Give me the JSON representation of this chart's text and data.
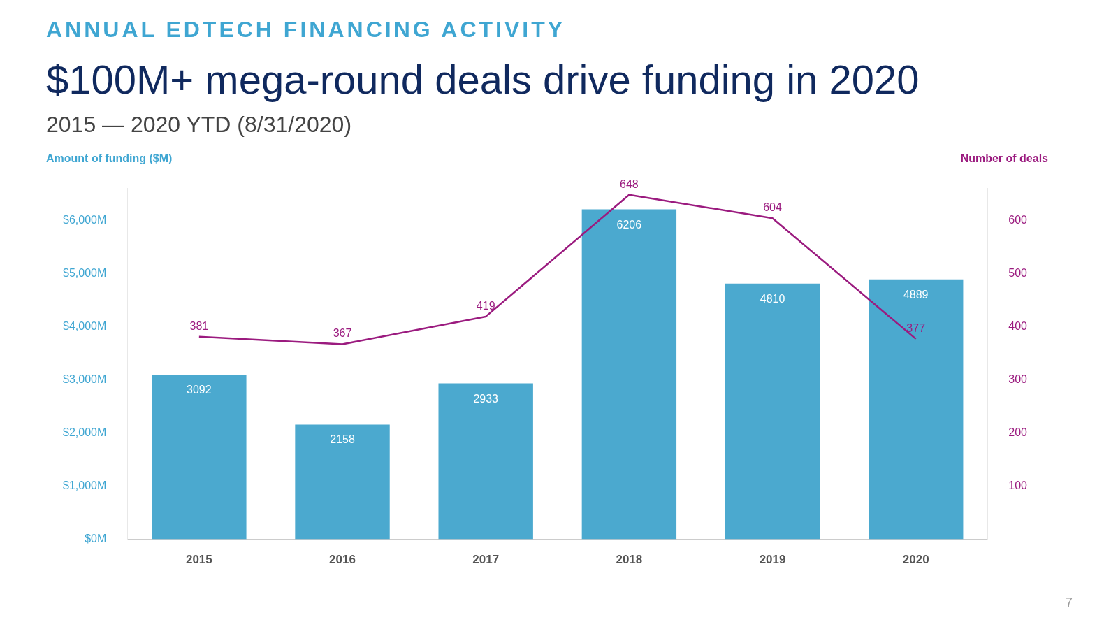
{
  "chart_data": {
    "type": "bar",
    "subtitle": "ANNUAL EDTECH FINANCING ACTIVITY",
    "title": "$100M+ mega-round deals drive funding in 2020",
    "annotations": [
      "2015 — 2020 YTD (8/31/2020)",
      "7"
    ],
    "ylabel": "Amount of funding ($M)",
    "y2label": "Number of deals",
    "categories": [
      "2015",
      "2016",
      "2017",
      "2018",
      "2019",
      "2020"
    ],
    "series": [
      {
        "color": "#4ba9cf",
        "values": [
          3092,
          2158,
          2933,
          6206,
          4810,
          4889
        ]
      },
      {
        "type": "line",
        "axis": "y2",
        "color": "#9b1b7f",
        "values": [
          381,
          367,
          419,
          648,
          604,
          377
        ]
      }
    ],
    "ylim": [
      0,
      6600
    ],
    "yticks": [
      {
        "value": 0,
        "label": "$0M"
      },
      {
        "value": 1000,
        "label": "$1,000M"
      },
      {
        "value": 2000,
        "label": "$2,000M"
      },
      {
        "value": 3000,
        "label": "$3,000M"
      },
      {
        "value": 4000,
        "label": "$4,000M"
      },
      {
        "value": 5000,
        "label": "$5,000M"
      },
      {
        "value": 6000,
        "label": "$6,000M"
      }
    ],
    "y2lim": [
      0,
      660
    ],
    "y2ticks": [
      100,
      200,
      300,
      400,
      500,
      600
    ],
    "data_labels": true,
    "grid": false,
    "legend": false,
    "marker": "none"
  }
}
